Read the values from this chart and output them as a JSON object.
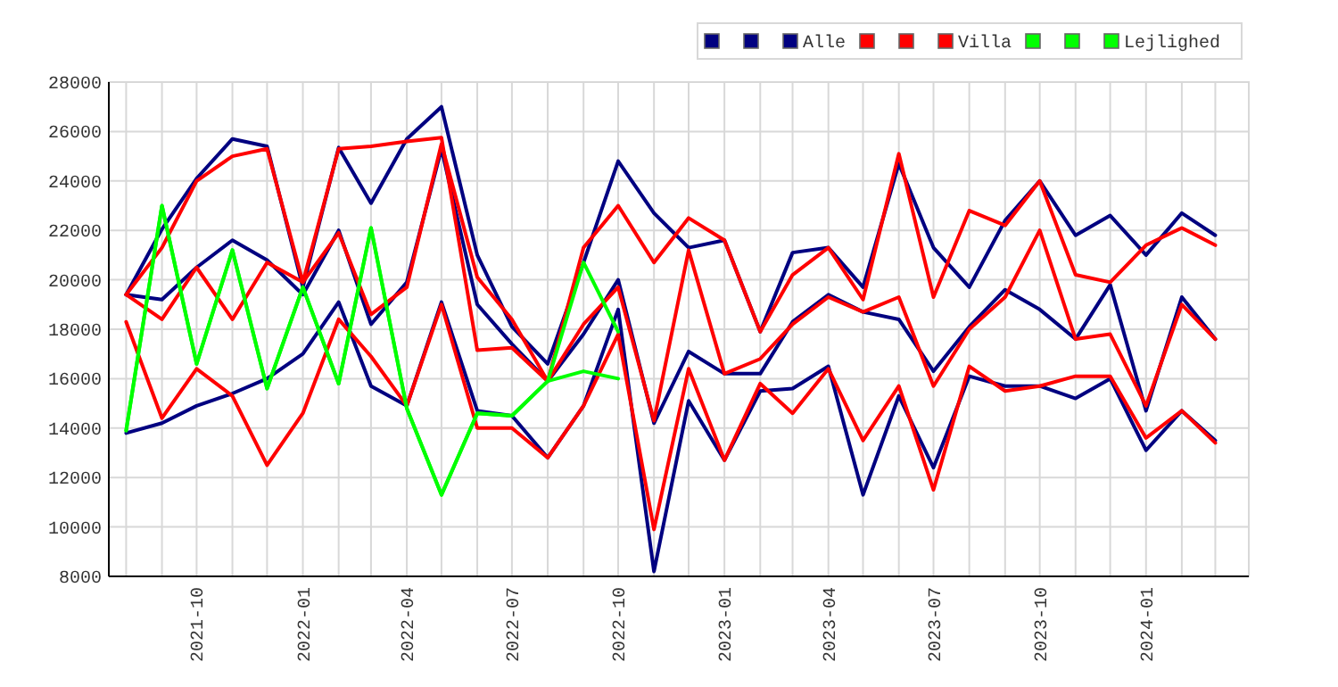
{
  "chart_data": {
    "type": "line",
    "x": [
      "2021-08",
      "2021-09",
      "2021-10",
      "2021-11",
      "2021-12",
      "2022-01",
      "2022-02",
      "2022-03",
      "2022-04",
      "2022-05",
      "2022-06",
      "2022-07",
      "2022-08",
      "2022-09",
      "2022-10",
      "2022-11",
      "2022-12",
      "2023-01",
      "2023-02",
      "2023-03",
      "2023-04",
      "2023-05",
      "2023-06",
      "2023-07",
      "2023-08",
      "2023-09",
      "2023-10",
      "2023-11",
      "2023-12",
      "2024-01",
      "2024-02",
      "2024-03"
    ],
    "xlim": [
      "2021-07-17",
      "2024-03-30"
    ],
    "xticks": [
      {
        "value": "2021-08",
        "label": null
      },
      {
        "value": "2021-09",
        "label": null
      },
      {
        "value": "2021-10",
        "label": "2021-10"
      },
      {
        "value": "2021-11",
        "label": null
      },
      {
        "value": "2021-12",
        "label": null
      },
      {
        "value": "2022-01",
        "label": "2022-01"
      },
      {
        "value": "2022-02",
        "label": null
      },
      {
        "value": "2022-03",
        "label": null
      },
      {
        "value": "2022-04",
        "label": "2022-04"
      },
      {
        "value": "2022-05",
        "label": null
      },
      {
        "value": "2022-06",
        "label": null
      },
      {
        "value": "2022-07",
        "label": "2022-07"
      },
      {
        "value": "2022-08",
        "label": null
      },
      {
        "value": "2022-09",
        "label": null
      },
      {
        "value": "2022-10",
        "label": "2022-10"
      },
      {
        "value": "2022-11",
        "label": null
      },
      {
        "value": "2022-12",
        "label": null
      },
      {
        "value": "2023-01",
        "label": "2023-01"
      },
      {
        "value": "2023-02",
        "label": null
      },
      {
        "value": "2023-03",
        "label": null
      },
      {
        "value": "2023-04",
        "label": "2023-04"
      },
      {
        "value": "2023-05",
        "label": null
      },
      {
        "value": "2023-06",
        "label": null
      },
      {
        "value": "2023-07",
        "label": "2023-07"
      },
      {
        "value": "2023-08",
        "label": null
      },
      {
        "value": "2023-09",
        "label": null
      },
      {
        "value": "2023-10",
        "label": "2023-10"
      },
      {
        "value": "2023-11",
        "label": null
      },
      {
        "value": "2023-12",
        "label": null
      },
      {
        "value": "2024-01",
        "label": "2024-01"
      },
      {
        "value": "2024-02",
        "label": null
      },
      {
        "value": "2024-03",
        "label": null
      }
    ],
    "ylim": [
      8000,
      28000
    ],
    "yticks": [
      8000,
      10000,
      12000,
      14000,
      16000,
      18000,
      20000,
      22000,
      24000,
      26000,
      28000
    ],
    "grid": true,
    "legend": "top right",
    "marker": "none",
    "line_style": "solid",
    "series": [
      {
        "color": "#000080",
        "values": [
          19400,
          22050,
          24100,
          25700,
          25400,
          19700,
          25350,
          23100,
          25700,
          27000,
          21000,
          18100,
          16600,
          20700,
          24800,
          22700,
          21300,
          21600,
          17900,
          21100,
          21300,
          19700,
          24700,
          21300,
          19700,
          22400,
          24000,
          21800,
          22600,
          21000,
          22700,
          21800
        ]
      },
      {
        "color": "#000080",
        "values": [
          19400,
          19200,
          20500,
          21600,
          20800,
          19400,
          22000,
          18200,
          19900,
          25300,
          19000,
          17400,
          15900,
          17800,
          20000,
          14200,
          17100,
          16200,
          16200,
          18300,
          19400,
          18700,
          18400,
          16300,
          18100,
          19600,
          18800,
          17600,
          19800,
          14700,
          19300,
          17600
        ]
      },
      {
        "name": "Alle",
        "color": "#000080",
        "values": [
          13800,
          14200,
          14900,
          15400,
          16000,
          17000,
          19100,
          15700,
          14900,
          19100,
          14700,
          14500,
          12800,
          14900,
          18800,
          8200,
          15100,
          12700,
          15500,
          15600,
          16500,
          11300,
          15300,
          12400,
          16100,
          15700,
          15700,
          15200,
          16000,
          13100,
          14700,
          13500
        ]
      },
      {
        "color": "#ff0000",
        "values": [
          19400,
          21300,
          24000,
          25000,
          25300,
          19900,
          25300,
          25400,
          25600,
          25750,
          17150,
          17250,
          15900,
          21300,
          23000,
          20700,
          22500,
          21600,
          17900,
          20200,
          21300,
          19200,
          25100,
          19300,
          22800,
          22200,
          24000,
          20200,
          19900,
          21400,
          22100,
          21400
        ]
      },
      {
        "color": "#ff0000",
        "values": [
          19400,
          18400,
          20500,
          18400,
          20700,
          19900,
          21900,
          18600,
          19700,
          25500,
          20100,
          18400,
          15900,
          18200,
          19700,
          14300,
          21200,
          16200,
          16800,
          18200,
          19300,
          18700,
          19300,
          15700,
          18000,
          19300,
          22000,
          17600,
          17800,
          14900,
          19000,
          17600
        ]
      },
      {
        "name": "Villa",
        "color": "#ff0000",
        "values": [
          18300,
          14400,
          16400,
          15300,
          12500,
          14600,
          18400,
          16900,
          14900,
          19000,
          14000,
          14000,
          12800,
          14900,
          17800,
          9900,
          16400,
          12700,
          15800,
          14600,
          16400,
          13500,
          15700,
          11500,
          16500,
          15500,
          15700,
          16100,
          16100,
          13600,
          14700,
          13400
        ]
      },
      {
        "color": "#00ff00",
        "values": [
          13900,
          23000,
          16600,
          21200,
          15600,
          19700,
          15800,
          22100,
          14800,
          11300,
          14600,
          14500,
          15900,
          20700,
          17900,
          null,
          null,
          null,
          null,
          null,
          null,
          null,
          null,
          null,
          null,
          null,
          null,
          null,
          null,
          null,
          null,
          null
        ]
      },
      {
        "color": "#00ff00",
        "values": [
          13900,
          23000,
          16600,
          21200,
          15600,
          19700,
          15800,
          22100,
          14800,
          11300,
          14600,
          14500,
          15900,
          16300,
          16000,
          null,
          null,
          null,
          null,
          null,
          null,
          null,
          null,
          null,
          null,
          null,
          null,
          null,
          null,
          null,
          null,
          null
        ]
      },
      {
        "name": "Lejlighed",
        "color": "#00ff00",
        "values": [
          null,
          null,
          null,
          null,
          null,
          null,
          null,
          null,
          null,
          null,
          null,
          null,
          null,
          null,
          null,
          null,
          null,
          null,
          null,
          null,
          null,
          null,
          null,
          null,
          null,
          null,
          null,
          null,
          null,
          null,
          null,
          null
        ]
      }
    ]
  }
}
